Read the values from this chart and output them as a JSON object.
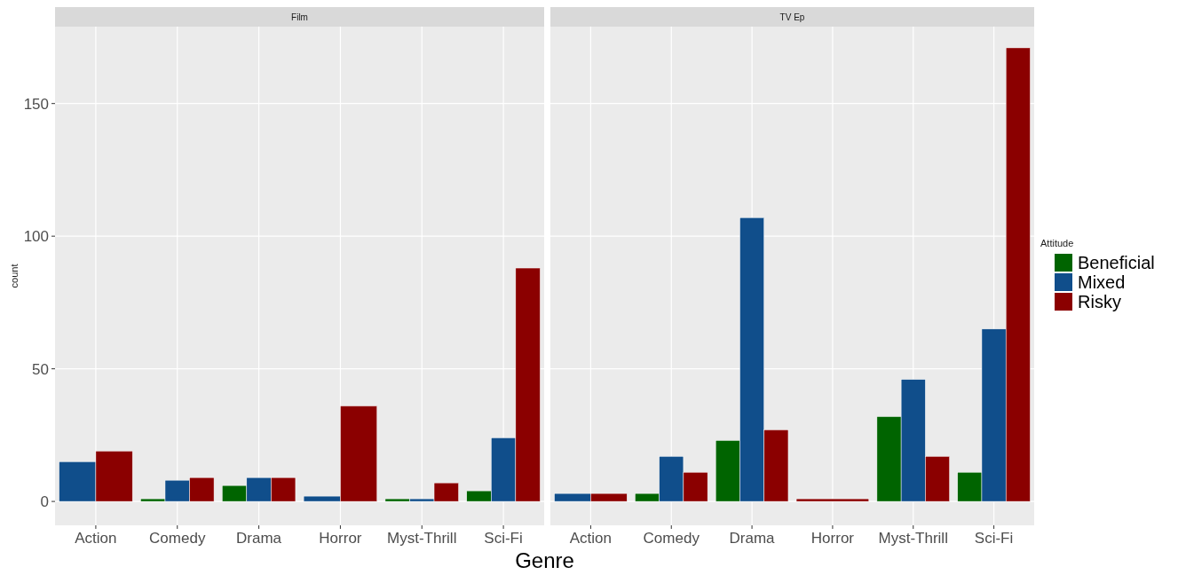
{
  "chart_data": [
    {
      "type": "bar",
      "title": "Film",
      "xlabel": "Genre",
      "ylabel": "count",
      "categories": [
        "Action",
        "Comedy",
        "Drama",
        "Horror",
        "Myst-Thrill",
        "Sci-Fi"
      ],
      "ylim": [
        -9,
        179
      ],
      "yticks": [
        0,
        50,
        100,
        150
      ],
      "grid": true,
      "series": [
        {
          "color": "#006400",
          "values": [
            null,
            1,
            6,
            null,
            1,
            4
          ]
        },
        {
          "color": "#104e8b",
          "values": [
            15,
            8,
            9,
            2,
            1,
            24
          ]
        },
        {
          "color": "#8b0000",
          "values": [
            19,
            9,
            9,
            36,
            7,
            88
          ]
        }
      ]
    },
    {
      "type": "bar",
      "title": "TV Ep",
      "categories": [
        "Action",
        "Comedy",
        "Drama",
        "Horror",
        "Myst-Thrill",
        "Sci-Fi"
      ],
      "ylim": [
        -9,
        179
      ],
      "yticks": [
        0,
        50,
        100,
        150
      ],
      "grid": true,
      "tick_labels": "x",
      "legend": "right",
      "legend_title": "Attitude",
      "series": [
        {
          "name": "Beneficial",
          "color": "#006400",
          "values": [
            null,
            3,
            23,
            null,
            32,
            11
          ]
        },
        {
          "name": "Mixed",
          "color": "#104e8b",
          "values": [
            3,
            17,
            107,
            null,
            46,
            65
          ]
        },
        {
          "name": "Risky",
          "color": "#8b0000",
          "values": [
            3,
            11,
            27,
            1,
            17,
            171
          ]
        }
      ]
    }
  ]
}
